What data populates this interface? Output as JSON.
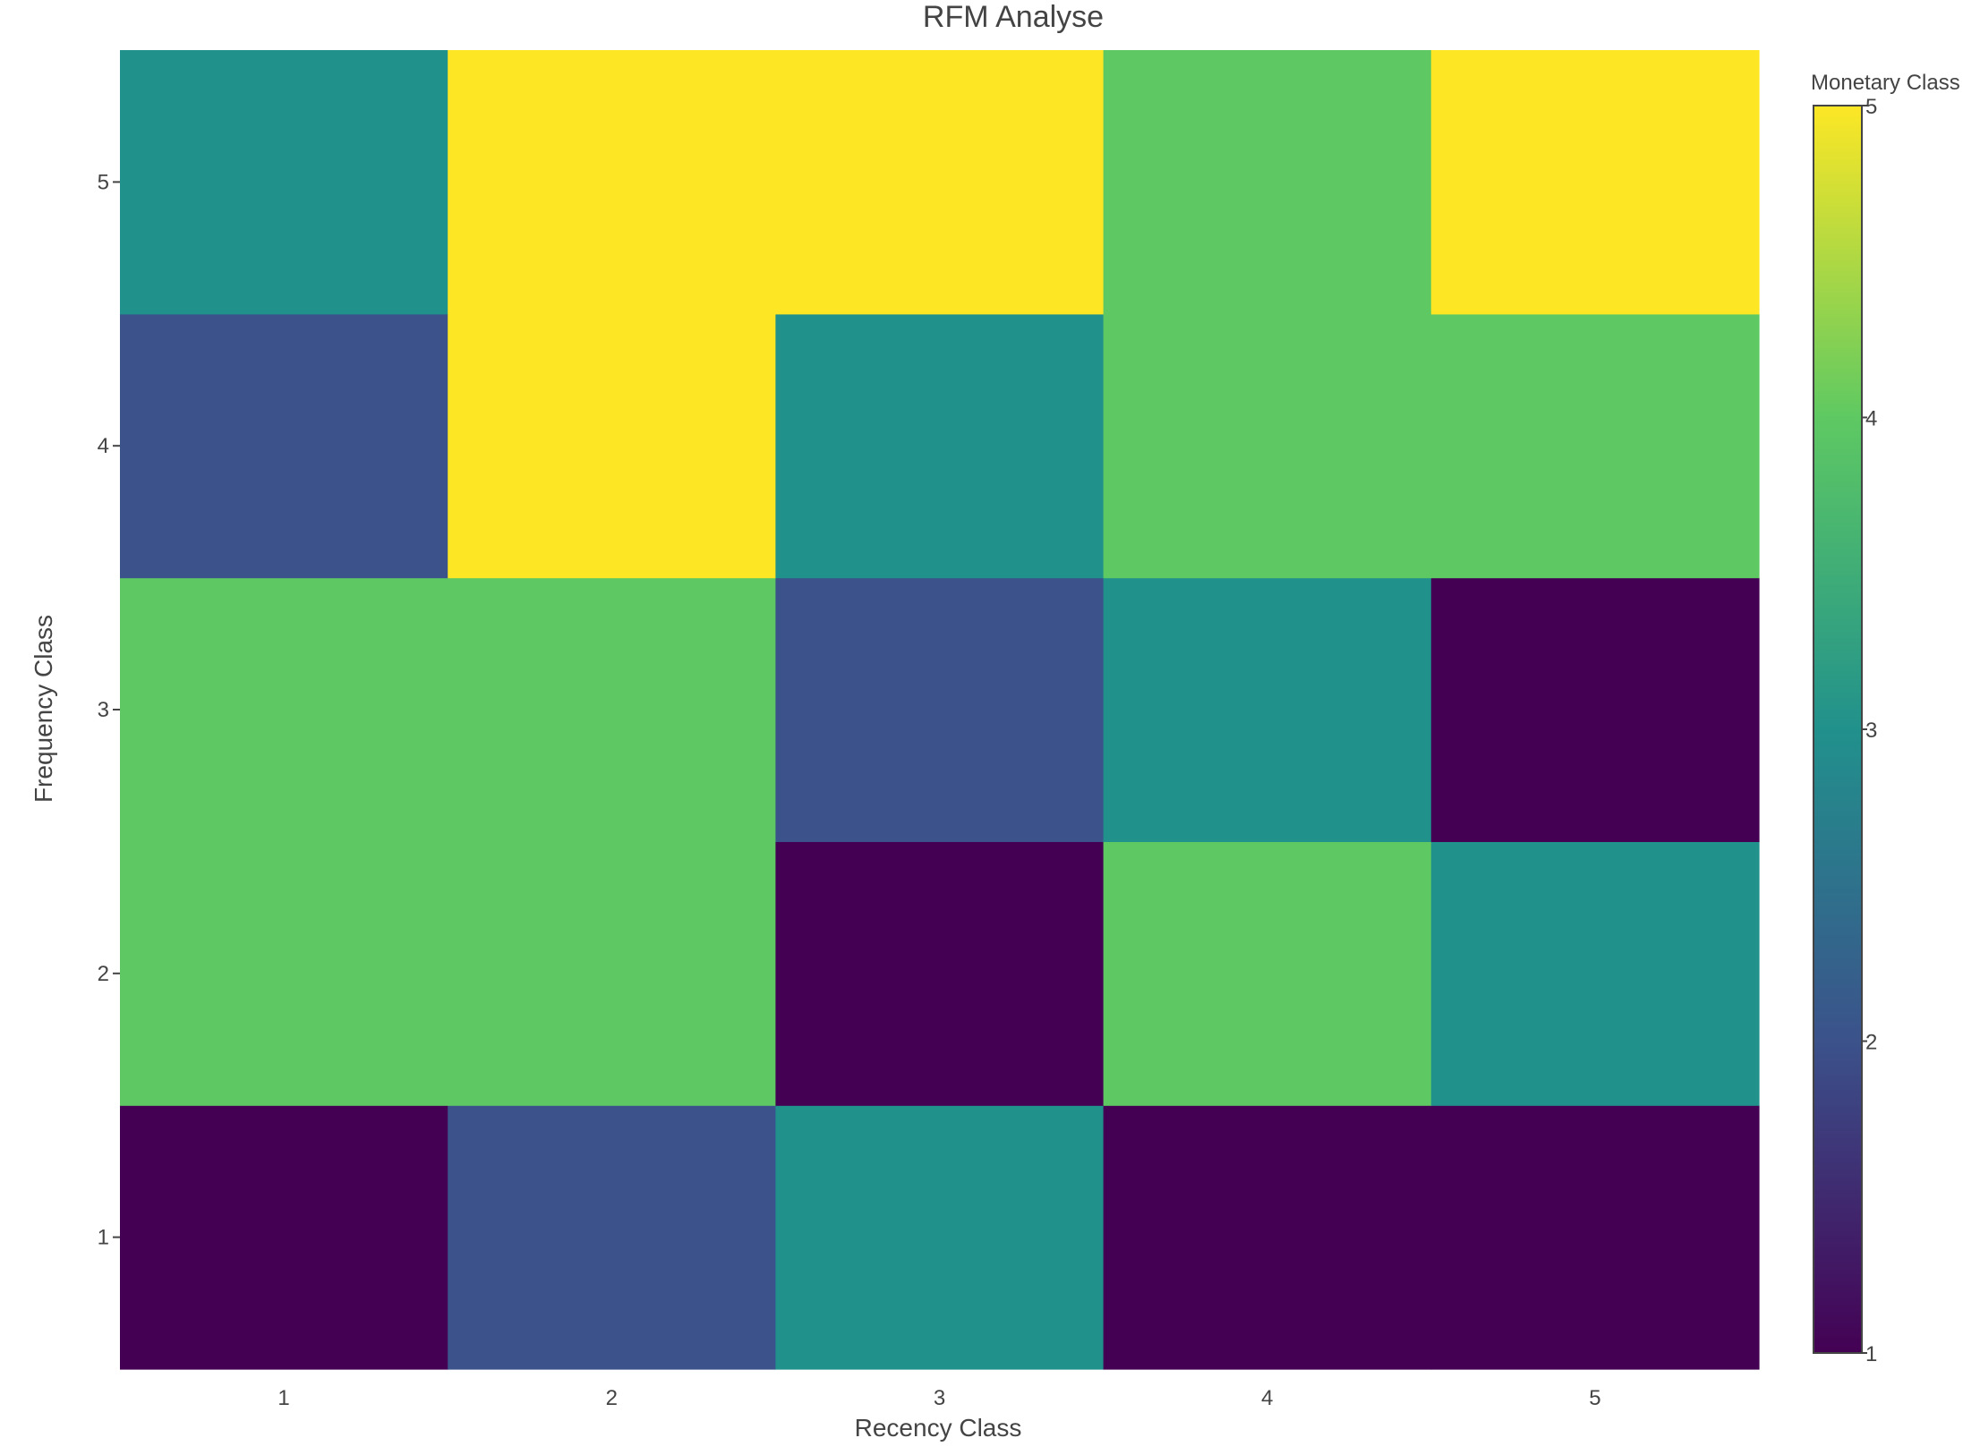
{
  "chart_data": {
    "type": "heatmap",
    "title": "RFM Analyse",
    "xlabel": "Recency Class",
    "ylabel": "Frequency Class",
    "x_categories": [
      "1",
      "2",
      "3",
      "4",
      "5"
    ],
    "y_categories": [
      "1",
      "2",
      "3",
      "4",
      "5"
    ],
    "z": [
      [
        1,
        2,
        3,
        1,
        1
      ],
      [
        4,
        4,
        1,
        4,
        3
      ],
      [
        4,
        4,
        2,
        3,
        1
      ],
      [
        2,
        5,
        3,
        4,
        4
      ],
      [
        3,
        5,
        5,
        4,
        5
      ]
    ],
    "colorscale": "Viridis",
    "colorscale_stops": [
      [
        0.0,
        "#440154"
      ],
      [
        0.25,
        "#3b528b"
      ],
      [
        0.5,
        "#21918c"
      ],
      [
        0.75,
        "#5ec962"
      ],
      [
        1.0,
        "#fde725"
      ]
    ],
    "colorbar": {
      "title": "Monetary Class",
      "range": [
        1,
        5
      ],
      "ticks": [
        "1",
        "2",
        "3",
        "4",
        "5"
      ]
    },
    "grid": false
  }
}
